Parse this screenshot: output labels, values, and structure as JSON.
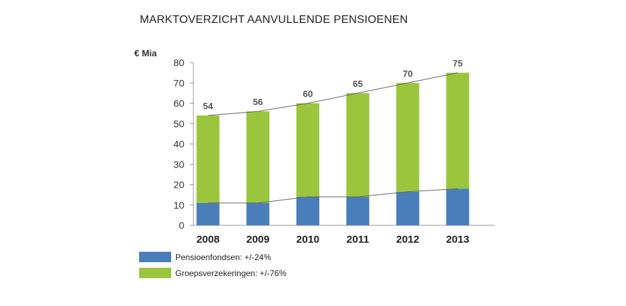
{
  "chart_data": {
    "type": "bar",
    "stacked": true,
    "title": "MARKTOVERZICHT AANVULLENDE PENSIOENEN",
    "ylabel": "€ Mia",
    "xlabel": "",
    "ylim": [
      0,
      80
    ],
    "yticks": [
      "0",
      "10",
      "20",
      "30",
      "40",
      "50",
      "60",
      "70",
      "80"
    ],
    "categories": [
      "2008",
      "2009",
      "2010",
      "2011",
      "2012",
      "2013"
    ],
    "series": [
      {
        "name": "Pensioenfondsen: +/-24%",
        "color": "#4a7ebb",
        "values": [
          11,
          11,
          14,
          14,
          16.5,
          18
        ]
      },
      {
        "name": "Groepsverzekeringen: +/-76%",
        "color": "#9bc53d",
        "values": [
          43,
          45,
          46,
          51,
          53.5,
          57
        ]
      }
    ],
    "totals": [
      "54",
      "56",
      "60",
      "65",
      "70",
      "75"
    ],
    "total_values": [
      54,
      56,
      60,
      65,
      70,
      75
    ],
    "grid": false,
    "legend_position": "bottom-left",
    "trend_lines": true
  }
}
